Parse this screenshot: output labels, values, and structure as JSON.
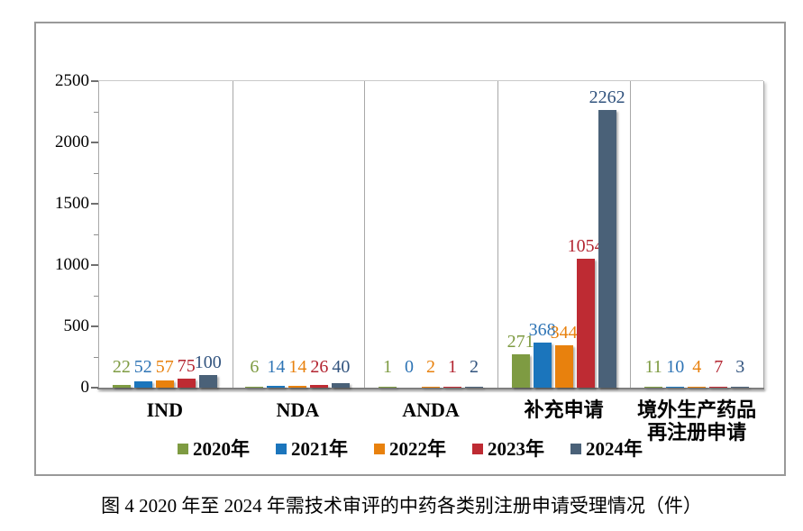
{
  "figure": {
    "caption": "图 4  2020 年至 2024 年需技术审评的中药各类别注册申请受理情况（件）"
  },
  "chart_data": {
    "type": "bar",
    "title": "",
    "xlabel": "",
    "ylabel": "",
    "categories": [
      "IND",
      "NDA",
      "ANDA",
      "补充申请",
      "境外生产药品\n再注册申请"
    ],
    "series": [
      {
        "name": "2020年",
        "color": "#7E9B42",
        "label_color": "#7E9B42",
        "values": [
          22,
          6,
          1,
          271,
          11
        ]
      },
      {
        "name": "2021年",
        "color": "#1B75BC",
        "label_color": "#2E74B5",
        "values": [
          52,
          14,
          0,
          368,
          10
        ]
      },
      {
        "name": "2022年",
        "color": "#E8810D",
        "label_color": "#E8810D",
        "values": [
          57,
          14,
          2,
          344,
          4
        ]
      },
      {
        "name": "2023年",
        "color": "#BE2B33",
        "label_color": "#B32430",
        "values": [
          75,
          26,
          1,
          1054,
          7
        ]
      },
      {
        "name": "2024年",
        "color": "#4A6178",
        "label_color": "#31537E",
        "values": [
          100,
          40,
          2,
          2262,
          3
        ]
      }
    ],
    "ylim": [
      0,
      2500
    ],
    "yticks": [
      0,
      500,
      1000,
      1500,
      2000,
      2500
    ],
    "minor_tick_step": 250,
    "grid": "vertical category separator lines only, top border line at y max",
    "legend_position": "bottom",
    "value_labels": true
  },
  "layout_colors": {
    "frame_border": "#999999",
    "panel_separator": "#a8a8a8",
    "axis_line": "#7f7f7f"
  }
}
